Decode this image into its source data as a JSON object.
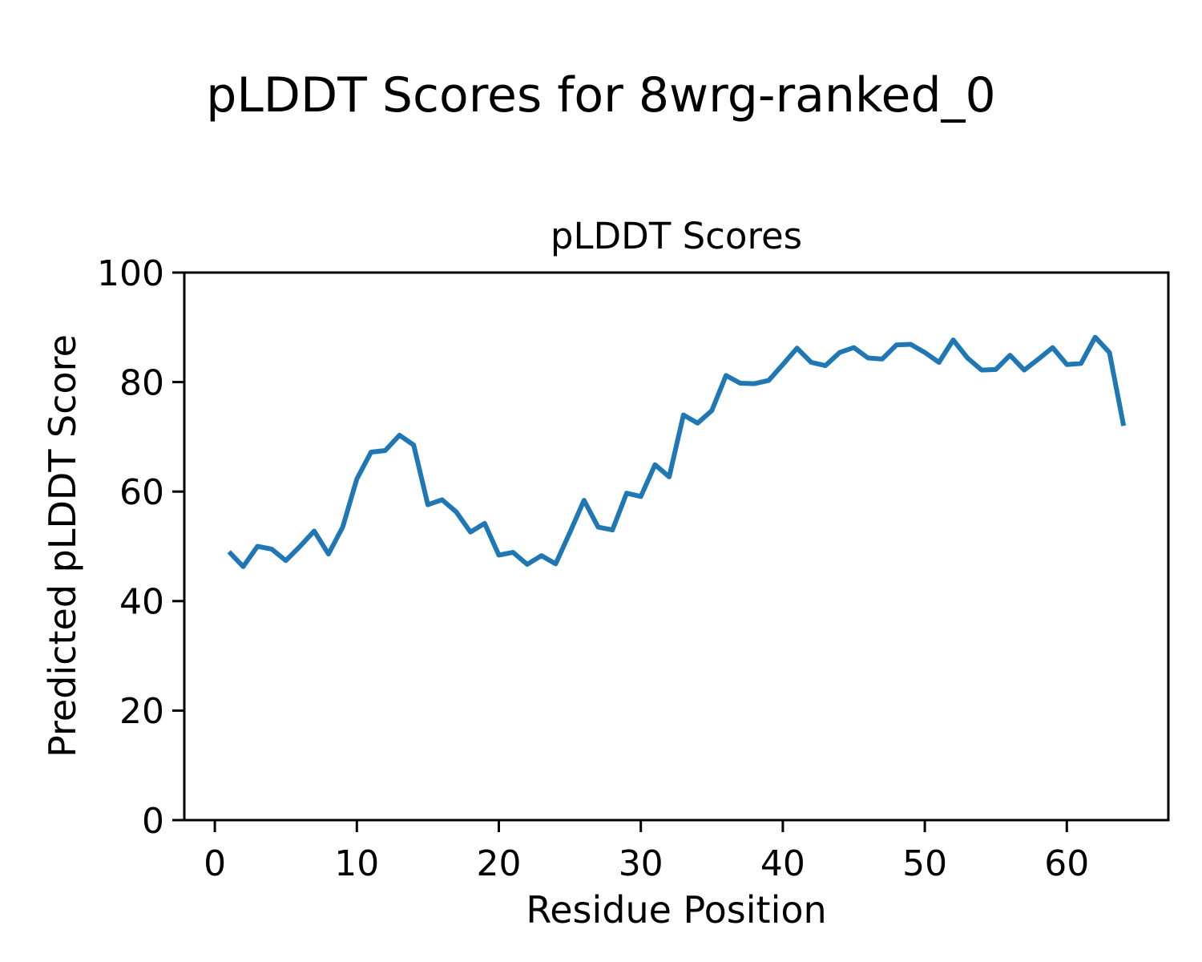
{
  "chart_data": {
    "type": "line",
    "suptitle": "pLDDT Scores for 8wrg-ranked_0",
    "title": "pLDDT Scores",
    "xlabel": "Residue Position",
    "ylabel": "Predicted pLDDT Score",
    "x": [
      1,
      2,
      3,
      4,
      5,
      6,
      7,
      8,
      9,
      10,
      11,
      12,
      13,
      14,
      15,
      16,
      17,
      18,
      19,
      20,
      21,
      22,
      23,
      24,
      25,
      26,
      27,
      28,
      29,
      30,
      31,
      32,
      33,
      34,
      35,
      36,
      37,
      38,
      39,
      40,
      41,
      42,
      43,
      44,
      45,
      46,
      47,
      48,
      49,
      50,
      51,
      52,
      53,
      54,
      55,
      56,
      57,
      58,
      59,
      60,
      61,
      62,
      63,
      64
    ],
    "series": [
      {
        "name": "pLDDT",
        "values": [
          49.0,
          46.3,
          50.0,
          49.5,
          47.4,
          50.0,
          52.8,
          48.6,
          53.5,
          62.3,
          67.2,
          67.5,
          70.3,
          68.5,
          57.6,
          58.5,
          56.3,
          52.6,
          54.2,
          48.4,
          48.9,
          46.7,
          48.3,
          46.8,
          52.5,
          58.4,
          53.5,
          53.0,
          59.7,
          59.1,
          64.9,
          62.7,
          74.0,
          72.5,
          74.8,
          81.2,
          79.8,
          79.7,
          80.3,
          83.2,
          86.2,
          83.6,
          83.0,
          85.4,
          86.3,
          84.4,
          84.2,
          86.8,
          86.9,
          85.4,
          83.6,
          87.7,
          84.4,
          82.2,
          82.3,
          84.9,
          82.2,
          84.2,
          86.3,
          83.2,
          83.4,
          88.2,
          85.4,
          72.0
        ]
      }
    ],
    "xlim": [
      -2.15,
      67.15
    ],
    "ylim": [
      0,
      100
    ],
    "x_ticks": [
      0,
      10,
      20,
      30,
      40,
      50,
      60
    ],
    "y_ticks": [
      0,
      20,
      40,
      60,
      80,
      100
    ],
    "grid": false,
    "legend": "none",
    "line_color": "#1f77b4",
    "axis_color": "#000000"
  }
}
